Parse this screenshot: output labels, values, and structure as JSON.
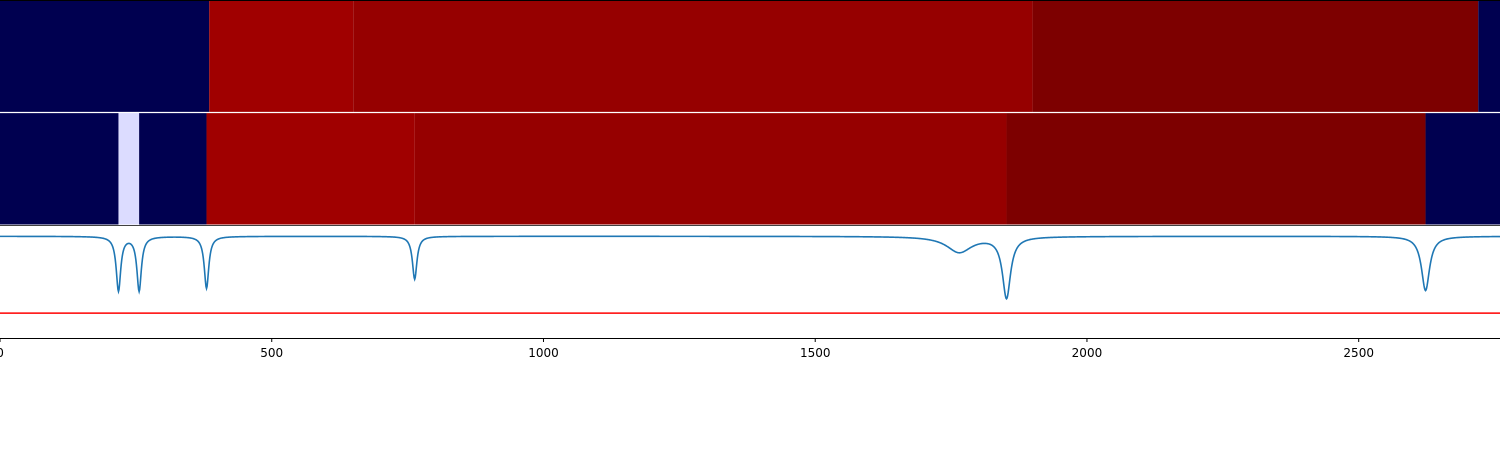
{
  "chart_data": {
    "type": "heatmap",
    "xlim": [
      0,
      2760
    ],
    "x_ticks": [
      0,
      500,
      1000,
      1500,
      2000,
      2500
    ],
    "x_tick_labels": [
      "0",
      "500",
      "1000",
      "1500",
      "2000",
      "2500"
    ],
    "grid": false,
    "legend": "none",
    "colors": {
      "navy": "#000050",
      "red_bright": "#a00000",
      "red_mid": "#960000",
      "red_dark": "#7d0000",
      "lavender": "#dcdcff",
      "line": "#1f77b4",
      "threshold_line": "#ff0000"
    },
    "heatmap_rows": [
      {
        "segments": [
          {
            "start": 0,
            "end": 385,
            "color": "#000050"
          },
          {
            "start": 385,
            "end": 650,
            "color": "#a00000"
          },
          {
            "start": 650,
            "end": 1900,
            "color": "#960000"
          },
          {
            "start": 1900,
            "end": 2720,
            "color": "#7d0000"
          },
          {
            "start": 2720,
            "end": 2760,
            "color": "#000050"
          }
        ]
      },
      {
        "segments": [
          {
            "start": 0,
            "end": 218,
            "color": "#000050"
          },
          {
            "start": 218,
            "end": 256,
            "color": "#dcdcff"
          },
          {
            "start": 256,
            "end": 380,
            "color": "#000050"
          },
          {
            "start": 380,
            "end": 763,
            "color": "#a00000"
          },
          {
            "start": 763,
            "end": 1852,
            "color": "#960000"
          },
          {
            "start": 1852,
            "end": 2623,
            "color": "#7d0000"
          },
          {
            "start": 2623,
            "end": 2760,
            "color": "#000050"
          }
        ]
      }
    ],
    "line_panel": {
      "ylim": [
        -0.45,
        0.05
      ],
      "baseline": 0,
      "threshold": -0.34,
      "dips": [
        {
          "center": 218,
          "depth": 0.24,
          "width": 5
        },
        {
          "center": 256,
          "depth": 0.24,
          "width": 5
        },
        {
          "center": 380,
          "depth": 0.23,
          "width": 5
        },
        {
          "center": 763,
          "depth": 0.19,
          "width": 5
        },
        {
          "center": 1765,
          "depth": 0.07,
          "width": 28
        },
        {
          "center": 1852,
          "depth": 0.27,
          "width": 9
        },
        {
          "center": 2623,
          "depth": 0.24,
          "width": 9
        }
      ]
    }
  }
}
